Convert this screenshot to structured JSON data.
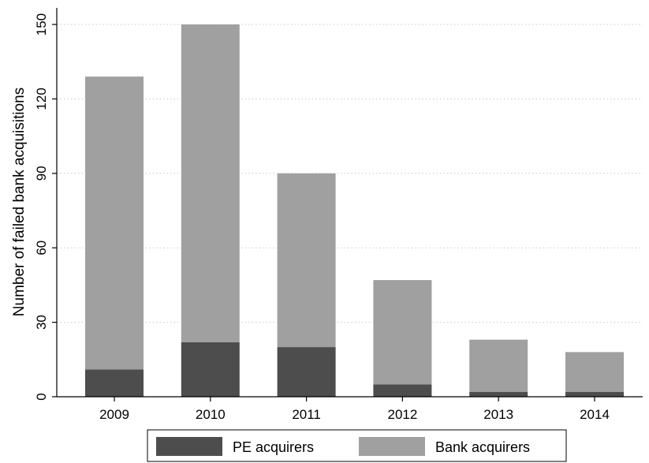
{
  "chart_data": {
    "type": "bar",
    "stacked": true,
    "categories": [
      "2009",
      "2010",
      "2011",
      "2012",
      "2013",
      "2014"
    ],
    "series": [
      {
        "name": "PE acquirers",
        "values": [
          11,
          22,
          20,
          5,
          2,
          2
        ],
        "color": "#4d4d4d"
      },
      {
        "name": "Bank acquirers",
        "values": [
          118,
          128,
          70,
          42,
          21,
          16
        ],
        "color": "#a0a0a0"
      }
    ],
    "title": "",
    "xlabel": "",
    "ylabel": "Number of failed bank acquisitions",
    "ylim": [
      0,
      150
    ],
    "yticks": [
      0,
      30,
      60,
      90,
      120,
      150
    ],
    "grid": true,
    "legend_position": "bottom"
  }
}
